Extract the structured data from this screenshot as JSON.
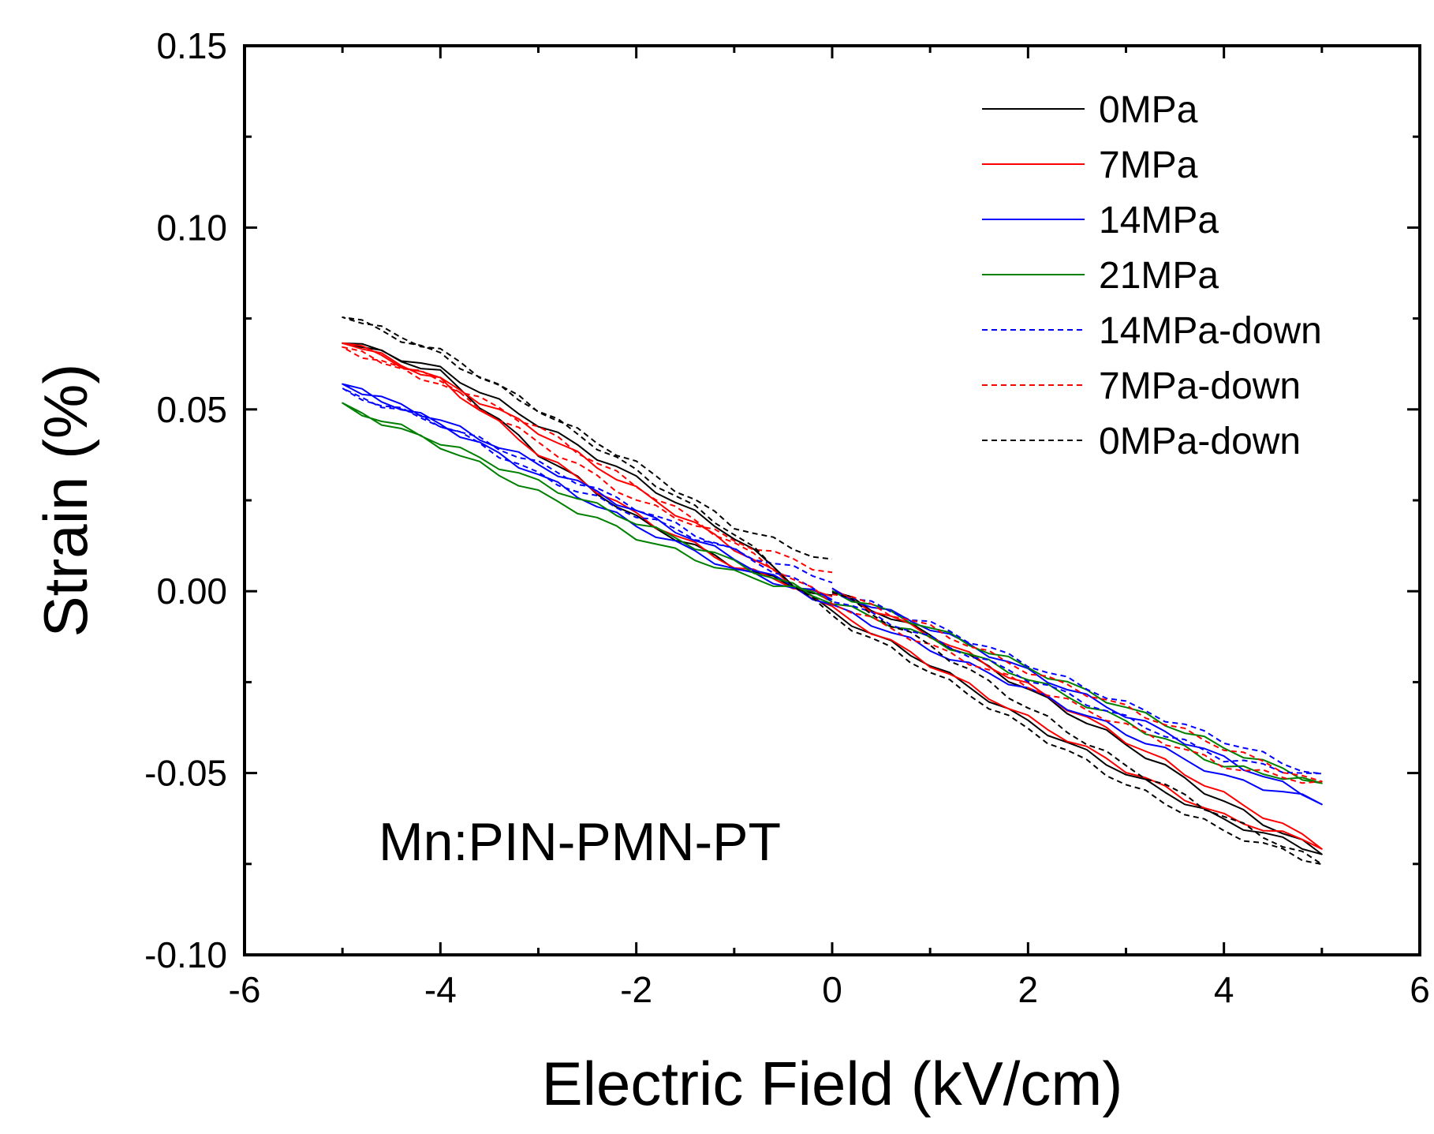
{
  "chart_data": {
    "type": "line",
    "title": "",
    "xlabel": "Electric Field (kV/cm)",
    "ylabel": "Strain (%)",
    "xlim": [
      -6,
      6
    ],
    "ylim": [
      -0.1,
      0.15
    ],
    "xticks": [
      -6,
      -4,
      -2,
      0,
      2,
      4,
      6
    ],
    "xtick_labels": [
      "-6",
      "-4",
      "-2",
      "0",
      "2",
      "4",
      "6"
    ],
    "yticks": [
      -0.1,
      -0.05,
      0.0,
      0.05,
      0.1,
      0.15
    ],
    "ytick_labels": [
      "-0.10",
      "-0.05",
      "0.00",
      "0.05",
      "0.10",
      "0.15"
    ],
    "grid": false,
    "legend_position": "top-right",
    "annotation": "Mn:PIN-PMN-PT",
    "series": [
      {
        "name": "0MPa",
        "color": "#000000",
        "dashed": false,
        "x": [
          0,
          1,
          2,
          3,
          4,
          5,
          4,
          3,
          2,
          1,
          0,
          -1,
          -2,
          -3,
          -4,
          -5,
          -4,
          -3,
          -2,
          -1,
          0
        ],
        "y": [
          0.0,
          -0.012,
          -0.027,
          -0.042,
          -0.058,
          -0.072,
          -0.063,
          -0.05,
          -0.036,
          -0.02,
          -0.006,
          0.015,
          0.031,
          0.046,
          0.061,
          0.069,
          0.06,
          0.038,
          0.02,
          0.007,
          -0.002
        ]
      },
      {
        "name": "7MPa",
        "color": "#ff0000",
        "dashed": false,
        "x": [
          0,
          1,
          2,
          3,
          4,
          5,
          4,
          3,
          2,
          1,
          0,
          -1,
          -2,
          -3,
          -4,
          -5,
          -4,
          -3,
          -2,
          -1,
          0
        ],
        "y": [
          0.0,
          -0.012,
          -0.026,
          -0.041,
          -0.056,
          -0.07,
          -0.062,
          -0.049,
          -0.035,
          -0.02,
          -0.005,
          0.012,
          0.028,
          0.044,
          0.058,
          0.069,
          0.058,
          0.038,
          0.021,
          0.007,
          -0.002
        ]
      },
      {
        "name": "14MPa",
        "color": "#0000ff",
        "dashed": false,
        "x": [
          0,
          1,
          2,
          3,
          4,
          5,
          4,
          3,
          2,
          1,
          0,
          -1,
          -2,
          -3,
          -4,
          -5,
          -4,
          -3,
          -2,
          -1,
          0
        ],
        "y": [
          0.0,
          -0.01,
          -0.022,
          -0.034,
          -0.046,
          -0.058,
          -0.051,
          -0.039,
          -0.027,
          -0.016,
          -0.004,
          0.009,
          0.022,
          0.035,
          0.047,
          0.057,
          0.046,
          0.032,
          0.018,
          0.006,
          -0.002
        ]
      },
      {
        "name": "21MPa",
        "color": "#008000",
        "dashed": false,
        "x": [
          0,
          1,
          2,
          3,
          4,
          5,
          4,
          3,
          2,
          1,
          0,
          -1,
          -2,
          -3,
          -4,
          -5,
          -4,
          -3,
          -2,
          -1,
          0
        ],
        "y": [
          0.0,
          -0.01,
          -0.021,
          -0.032,
          -0.043,
          -0.053,
          -0.048,
          -0.036,
          -0.024,
          -0.013,
          -0.003,
          0.008,
          0.019,
          0.03,
          0.041,
          0.051,
          0.04,
          0.027,
          0.015,
          0.005,
          -0.002
        ]
      },
      {
        "name": "14MPa-down",
        "color": "#0000ff",
        "dashed": true,
        "x": [
          0,
          1,
          2,
          3,
          4,
          5,
          4,
          3,
          2,
          1,
          0,
          -1,
          -2,
          -3,
          -4,
          -5,
          -4,
          -3,
          -2,
          -1,
          0
        ],
        "y": [
          0.0,
          -0.009,
          -0.02,
          -0.031,
          -0.041,
          -0.051,
          -0.046,
          -0.035,
          -0.024,
          -0.013,
          -0.002,
          0.011,
          0.023,
          0.035,
          0.046,
          0.055,
          0.046,
          0.032,
          0.021,
          0.011,
          0.003
        ]
      },
      {
        "name": "7MPa-down",
        "color": "#ff0000",
        "dashed": true,
        "x": [
          0,
          1,
          2,
          3,
          4,
          5,
          4,
          3,
          2,
          1,
          0,
          -1,
          -2,
          -3,
          -4,
          -5,
          -4,
          -3,
          -2,
          -1,
          0
        ],
        "y": [
          0.0,
          -0.01,
          -0.022,
          -0.032,
          -0.043,
          -0.053,
          -0.048,
          -0.037,
          -0.026,
          -0.015,
          -0.003,
          0.013,
          0.029,
          0.045,
          0.058,
          0.067,
          0.057,
          0.041,
          0.025,
          0.014,
          0.005
        ]
      },
      {
        "name": "0MPa-down",
        "color": "#000000",
        "dashed": true,
        "x": [
          0,
          1,
          2,
          3,
          4,
          5,
          4,
          3,
          2,
          1,
          0,
          -1,
          -2,
          -3,
          -4,
          -5,
          -4,
          -3,
          -2,
          -1,
          0
        ],
        "y": [
          0.0,
          -0.015,
          -0.032,
          -0.048,
          -0.062,
          -0.075,
          -0.066,
          -0.053,
          -0.038,
          -0.022,
          -0.007,
          0.016,
          0.033,
          0.05,
          0.065,
          0.076,
          0.066,
          0.05,
          0.035,
          0.018,
          0.008
        ]
      }
    ]
  }
}
